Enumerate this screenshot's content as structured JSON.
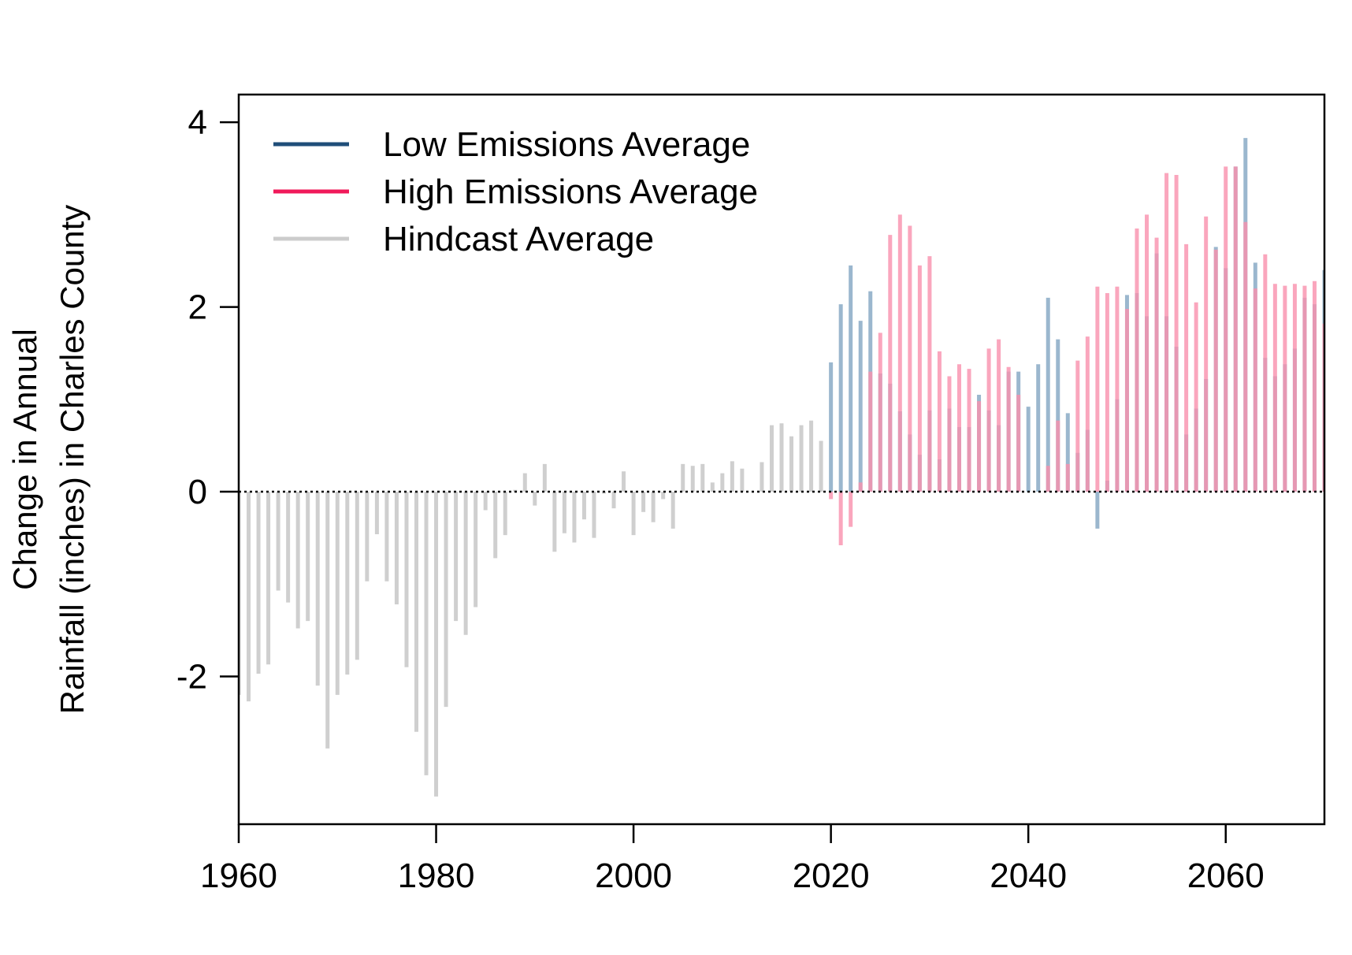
{
  "chart_data": {
    "type": "bar",
    "title": "",
    "xlabel": "",
    "ylabel_line1": "Change in Annual",
    "ylabel_line2": "Rainfall (inches) in Charles County",
    "xlim": [
      1960,
      2070
    ],
    "ylim": [
      -3.6,
      4.3
    ],
    "xticks": [
      "1960",
      "1980",
      "2000",
      "2020",
      "2040",
      "2060"
    ],
    "yticks": [
      "-2",
      "0",
      "2",
      "4"
    ],
    "reference_line": 0,
    "legend_position": "top-left",
    "colors": {
      "low": "#1f4e79",
      "high": "#f0195a",
      "hindcast": "#cccccc",
      "low_bar": "#89aac5",
      "high_bar": "#f990ad",
      "hindcast_bar": "#cfcfcf"
    },
    "series": [
      {
        "name": "Hindcast Average",
        "key": "hindcast",
        "years": [
          1960,
          1961,
          1962,
          1963,
          1964,
          1965,
          1966,
          1967,
          1968,
          1969,
          1970,
          1971,
          1972,
          1973,
          1974,
          1975,
          1976,
          1977,
          1978,
          1979,
          1980,
          1981,
          1982,
          1983,
          1984,
          1985,
          1986,
          1987,
          1988,
          1989,
          1990,
          1991,
          1992,
          1993,
          1994,
          1995,
          1996,
          1997,
          1998,
          1999,
          2000,
          2001,
          2002,
          2003,
          2004,
          2005,
          2006,
          2007,
          2008,
          2009,
          2010,
          2011,
          2012,
          2013,
          2014,
          2015,
          2016,
          2017,
          2018,
          2019
        ],
        "values": [
          -2.2,
          -2.27,
          -1.97,
          -1.87,
          -1.07,
          -1.2,
          -1.48,
          -1.4,
          -2.1,
          -2.78,
          -2.2,
          -1.98,
          -1.82,
          -0.97,
          -0.46,
          -0.97,
          -1.22,
          -1.9,
          -2.6,
          -3.07,
          -3.3,
          -2.33,
          -1.4,
          -1.55,
          -1.25,
          -0.2,
          -0.72,
          -0.47,
          0.02,
          0.2,
          -0.15,
          0.3,
          -0.65,
          -0.45,
          -0.55,
          -0.3,
          -0.5,
          -0.02,
          -0.18,
          0.22,
          -0.47,
          -0.22,
          -0.33,
          -0.08,
          -0.4,
          0.3,
          0.28,
          0.3,
          0.1,
          0.2,
          0.33,
          0.25,
          0.0,
          0.32,
          0.72,
          0.74,
          0.6,
          0.72,
          0.77,
          0.55
        ]
      },
      {
        "name": "Low Emissions Average",
        "key": "low",
        "years": [
          2020,
          2021,
          2022,
          2023,
          2024,
          2025,
          2026,
          2027,
          2028,
          2029,
          2030,
          2031,
          2032,
          2033,
          2034,
          2035,
          2036,
          2037,
          2038,
          2039,
          2040,
          2041,
          2042,
          2043,
          2044,
          2045,
          2046,
          2047,
          2048,
          2049,
          2050,
          2051,
          2052,
          2053,
          2054,
          2055,
          2056,
          2057,
          2058,
          2059,
          2060,
          2061,
          2062,
          2063,
          2064,
          2065,
          2066,
          2067,
          2068,
          2069,
          2070
        ],
        "values": [
          1.4,
          2.03,
          2.45,
          1.85,
          2.17,
          1.28,
          1.17,
          0.87,
          0.62,
          0.4,
          0.88,
          0.35,
          0.9,
          0.7,
          0.7,
          1.05,
          0.88,
          0.72,
          1.3,
          1.3,
          0.92,
          1.38,
          2.1,
          1.65,
          0.85,
          0.42,
          0.67,
          -0.4,
          0.12,
          1.0,
          2.13,
          2.15,
          1.9,
          2.58,
          1.9,
          1.57,
          0.62,
          0.9,
          1.22,
          2.65,
          2.42,
          3.52,
          3.83,
          2.48,
          1.45,
          1.25,
          1.38,
          1.55,
          2.1,
          2.03,
          2.4
        ]
      },
      {
        "name": "High Emissions Average",
        "key": "high",
        "years": [
          2020,
          2021,
          2022,
          2023,
          2024,
          2025,
          2026,
          2027,
          2028,
          2029,
          2030,
          2031,
          2032,
          2033,
          2034,
          2035,
          2036,
          2037,
          2038,
          2039,
          2040,
          2041,
          2042,
          2043,
          2044,
          2045,
          2046,
          2047,
          2048,
          2049,
          2050,
          2051,
          2052,
          2053,
          2054,
          2055,
          2056,
          2057,
          2058,
          2059,
          2060,
          2061,
          2062,
          2063,
          2064,
          2065,
          2066,
          2067,
          2068,
          2069,
          2070
        ],
        "values": [
          -0.08,
          -0.58,
          -0.38,
          0.1,
          1.3,
          1.72,
          2.78,
          3.0,
          2.88,
          2.45,
          2.55,
          1.52,
          1.25,
          1.38,
          1.33,
          0.98,
          1.55,
          1.65,
          1.35,
          1.05,
          0.0,
          0.0,
          0.28,
          0.77,
          0.3,
          1.42,
          1.68,
          2.22,
          2.15,
          2.22,
          1.98,
          2.85,
          3.0,
          2.75,
          3.45,
          3.43,
          2.68,
          2.05,
          2.98,
          2.62,
          3.52,
          3.52,
          2.92,
          2.2,
          2.57,
          2.25,
          2.23,
          2.25,
          2.23,
          2.28,
          1.82
        ]
      }
    ]
  }
}
